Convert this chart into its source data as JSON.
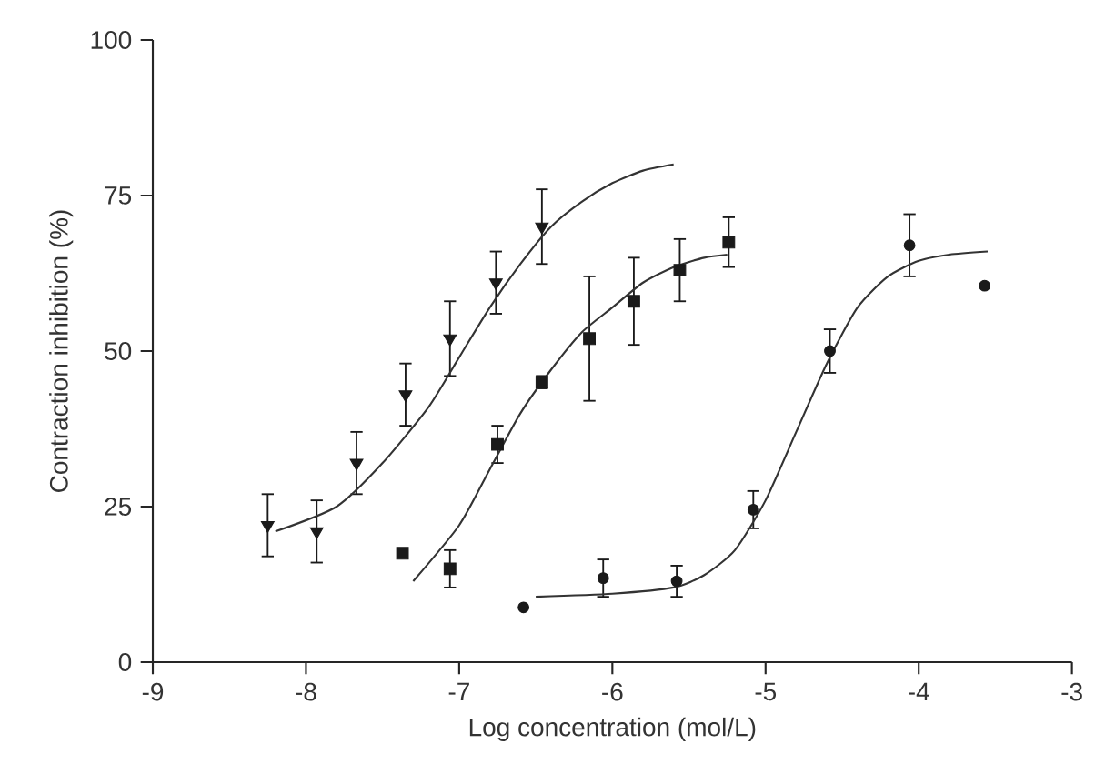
{
  "chart_data": {
    "type": "scatter",
    "xlabel": "Log concentration (mol/L)",
    "ylabel": "Contraction inhibition (%)",
    "xlim": [
      -9,
      -3
    ],
    "ylim": [
      0,
      100
    ],
    "xticks": [
      -9,
      -8,
      -7,
      -6,
      -5,
      -4,
      -3
    ],
    "yticks": [
      0,
      25,
      50,
      75,
      100
    ],
    "grid": false,
    "series": [
      {
        "marker": "triangle",
        "color": "#1a1a1a",
        "x": [
          -8.25,
          -7.93,
          -7.67,
          -7.35,
          -7.06,
          -6.76,
          -6.46
        ],
        "values": [
          22,
          21,
          32,
          43,
          52,
          61,
          70
        ],
        "errors": [
          5,
          5,
          5,
          5,
          6,
          5,
          6
        ]
      },
      {
        "marker": "square",
        "color": "#1a1a1a",
        "x": [
          -7.37,
          -7.06,
          -6.75,
          -6.46,
          -6.15,
          -5.86,
          -5.56,
          -5.24
        ],
        "values": [
          17.5,
          15,
          35,
          45,
          52,
          58,
          63,
          67.5
        ],
        "errors": [
          null,
          3,
          3,
          1,
          10,
          7,
          5,
          4
        ]
      },
      {
        "marker": "circle",
        "color": "#1a1a1a",
        "x": [
          -6.58,
          -6.06,
          -5.58,
          -5.08,
          -4.58,
          -4.06,
          -3.57
        ],
        "values": [
          8.8,
          13.5,
          13,
          24.5,
          50,
          67,
          60.5
        ],
        "errors": [
          null,
          3,
          2.5,
          3,
          3.5,
          5,
          null
        ]
      },
      {
        "type": "line",
        "marker": "none",
        "color": "#333333",
        "x": [
          -8.2,
          -7.8,
          -7.5,
          -7.2,
          -7.0,
          -6.8,
          -6.6,
          -6.4,
          -6.2,
          -6.0,
          -5.8,
          -5.6
        ],
        "values": [
          21,
          25,
          32,
          41,
          49,
          57,
          64,
          70,
          74,
          77,
          79,
          80
        ]
      },
      {
        "type": "line",
        "marker": "none",
        "color": "#333333",
        "x": [
          -7.3,
          -7.0,
          -6.8,
          -6.6,
          -6.4,
          -6.2,
          -6.0,
          -5.8,
          -5.6,
          -5.4,
          -5.25
        ],
        "values": [
          13,
          22,
          31,
          40,
          47,
          53,
          57,
          61,
          63.5,
          65,
          65.5
        ]
      },
      {
        "type": "line",
        "marker": "none",
        "color": "#333333",
        "x": [
          -6.5,
          -6.0,
          -5.6,
          -5.4,
          -5.2,
          -5.0,
          -4.8,
          -4.6,
          -4.4,
          -4.2,
          -4.0,
          -3.8,
          -3.55
        ],
        "values": [
          10.5,
          11,
          12,
          14,
          18,
          26,
          37,
          48,
          57,
          62,
          64.5,
          65.5,
          66
        ]
      }
    ]
  }
}
